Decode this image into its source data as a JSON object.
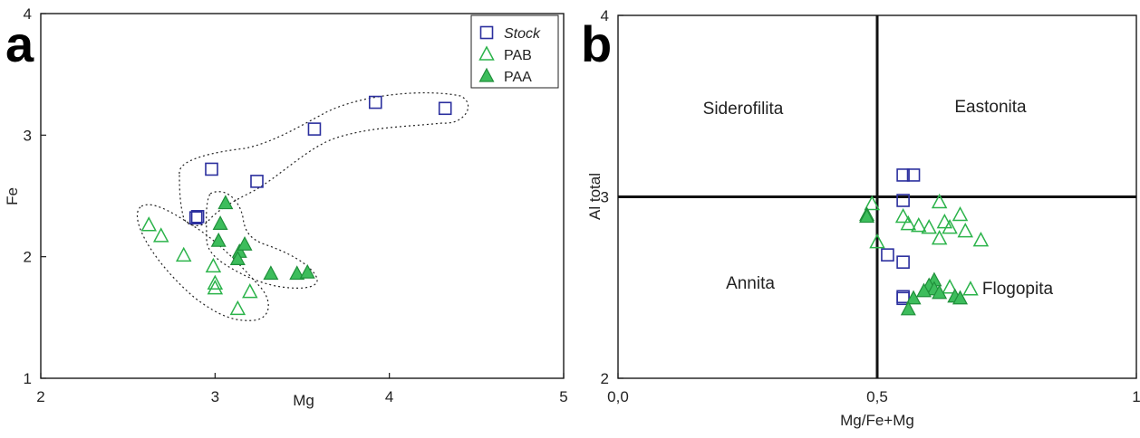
{
  "colors": {
    "stock": "#2b2f9e",
    "pab": "#2bb34a",
    "paa_fill": "#3dbd5c",
    "paa_stroke": "#1f8f3a",
    "axis": "#1a1a1a"
  },
  "legend": [
    {
      "label": "Stock",
      "italic": true,
      "marker": "open-square"
    },
    {
      "label": "PAB",
      "italic": false,
      "marker": "open-triangle"
    },
    {
      "label": "PAA",
      "italic": false,
      "marker": "filled-triangle"
    }
  ],
  "chart_data": [
    {
      "panel": "a",
      "type": "scatter",
      "xlabel": "Mg",
      "ylabel": "Fe",
      "xlim": [
        2,
        5
      ],
      "ylim": [
        1,
        4
      ],
      "xticks": [
        "2",
        "3",
        "4",
        "5"
      ],
      "yticks": [
        "1",
        "2",
        "3",
        "4"
      ],
      "grid": false,
      "legend_position": "top-right",
      "series": [
        {
          "name": "Stock",
          "marker": "open-square",
          "points": [
            [
              2.89,
              2.32
            ],
            [
              2.9,
              2.33
            ],
            [
              2.98,
              2.72
            ],
            [
              3.24,
              2.62
            ],
            [
              3.57,
              3.05
            ],
            [
              3.92,
              3.27
            ],
            [
              4.32,
              3.22
            ]
          ]
        },
        {
          "name": "PAB",
          "marker": "open-triangle",
          "points": [
            [
              2.62,
              2.26
            ],
            [
              2.69,
              2.17
            ],
            [
              2.82,
              2.01
            ],
            [
              2.99,
              1.92
            ],
            [
              3.0,
              1.78
            ],
            [
              3.0,
              1.74
            ],
            [
              3.2,
              1.71
            ],
            [
              3.13,
              1.57
            ]
          ]
        },
        {
          "name": "PAA",
          "marker": "filled-triangle",
          "points": [
            [
              3.06,
              2.44
            ],
            [
              3.03,
              2.27
            ],
            [
              3.02,
              2.13
            ],
            [
              3.14,
              2.04
            ],
            [
              3.17,
              2.1
            ],
            [
              3.13,
              1.98
            ],
            [
              3.32,
              1.86
            ],
            [
              3.47,
              1.86
            ],
            [
              3.53,
              1.87
            ]
          ]
        }
      ]
    },
    {
      "panel": "b",
      "type": "scatter",
      "xlabel": "Mg/Fe+Mg",
      "ylabel": "Al total",
      "xlim": [
        0,
        1
      ],
      "ylim": [
        2,
        4
      ],
      "xticks": [
        "0,0",
        "0,5",
        "1"
      ],
      "yticks": [
        "2",
        "3",
        "4"
      ],
      "grid": false,
      "dividers": {
        "x": 0.5,
        "y": 3
      },
      "regions": [
        "Siderofilita",
        "Eastonita",
        "Annita",
        "Flogopita"
      ],
      "series": [
        {
          "name": "Stock",
          "marker": "open-square",
          "points": [
            [
              0.55,
              3.12
            ],
            [
              0.57,
              3.12
            ],
            [
              0.55,
              2.98
            ],
            [
              0.52,
              2.68
            ],
            [
              0.55,
              2.64
            ],
            [
              0.55,
              2.45
            ],
            [
              0.55,
              2.44
            ]
          ]
        },
        {
          "name": "PAB",
          "marker": "open-triangle",
          "points": [
            [
              0.49,
              2.96
            ],
            [
              0.55,
              2.89
            ],
            [
              0.56,
              2.85
            ],
            [
              0.58,
              2.84
            ],
            [
              0.6,
              2.83
            ],
            [
              0.5,
              2.75
            ],
            [
              0.62,
              2.97
            ],
            [
              0.63,
              2.86
            ],
            [
              0.64,
              2.83
            ],
            [
              0.66,
              2.9
            ],
            [
              0.67,
              2.81
            ],
            [
              0.62,
              2.77
            ],
            [
              0.7,
              2.76
            ],
            [
              0.64,
              2.5
            ],
            [
              0.68,
              2.49
            ]
          ]
        },
        {
          "name": "PAA",
          "marker": "filled-triangle",
          "points": [
            [
              0.48,
              2.9
            ],
            [
              0.48,
              2.89
            ],
            [
              0.61,
              2.54
            ],
            [
              0.6,
              2.51
            ],
            [
              0.61,
              2.49
            ],
            [
              0.59,
              2.48
            ],
            [
              0.62,
              2.47
            ],
            [
              0.57,
              2.44
            ],
            [
              0.56,
              2.38
            ],
            [
              0.65,
              2.45
            ],
            [
              0.66,
              2.44
            ]
          ]
        }
      ]
    }
  ]
}
